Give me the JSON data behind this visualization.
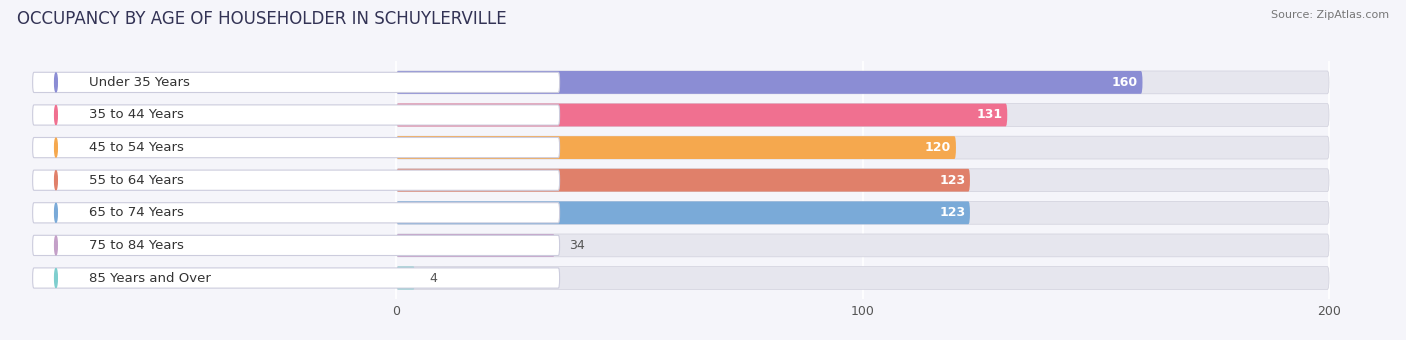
{
  "title": "OCCUPANCY BY AGE OF HOUSEHOLDER IN SCHUYLERVILLE",
  "source": "Source: ZipAtlas.com",
  "categories": [
    "Under 35 Years",
    "35 to 44 Years",
    "45 to 54 Years",
    "55 to 64 Years",
    "65 to 74 Years",
    "75 to 84 Years",
    "85 Years and Over"
  ],
  "values": [
    160,
    131,
    120,
    123,
    123,
    34,
    4
  ],
  "bar_colors": [
    "#8B8DD4",
    "#F07090",
    "#F5A84E",
    "#E0806A",
    "#7AAAD8",
    "#C4A0C8",
    "#7ECECE"
  ],
  "xlim": [
    -85,
    215
  ],
  "xticks": [
    0,
    100,
    200
  ],
  "bar_height": 0.7,
  "background_color": "#f5f5fa",
  "bar_bg_color": "#e6e6ee",
  "title_fontsize": 12,
  "label_fontsize": 9.5,
  "value_fontsize": 9.0
}
